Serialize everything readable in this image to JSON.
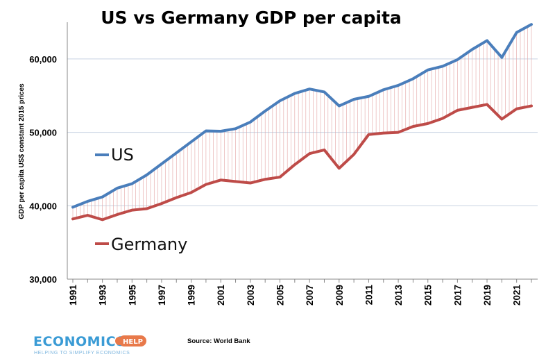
{
  "chart_data": {
    "type": "line",
    "title": "US vs Germany GDP per capita",
    "ylabel": "GDP per capita US$ constant 2015 prices",
    "xlabel": "",
    "ylim": [
      30000,
      65000
    ],
    "yticks": [
      30000,
      40000,
      50000,
      60000
    ],
    "ytick_labels": [
      "30,000",
      "40,000",
      "50,000",
      "60,000"
    ],
    "xlim": [
      1991,
      2022
    ],
    "xtick_labels": [
      "1991",
      "1993",
      "1995",
      "1997",
      "1999",
      "2001",
      "2003",
      "2005",
      "2007",
      "2009",
      "2011",
      "2013",
      "2015",
      "2017",
      "2019",
      "2021"
    ],
    "x": [
      1991,
      1992,
      1993,
      1994,
      1995,
      1996,
      1997,
      1998,
      1999,
      2000,
      2001,
      2002,
      2003,
      2004,
      2005,
      2006,
      2007,
      2008,
      2009,
      2010,
      2011,
      2012,
      2013,
      2014,
      2015,
      2016,
      2017,
      2018,
      2019,
      2020,
      2021,
      2022
    ],
    "series": [
      {
        "name": "US",
        "color": "#4a7ebb",
        "values": [
          39800,
          40600,
          41200,
          42400,
          43000,
          44200,
          45700,
          47200,
          48700,
          50200,
          50150,
          50500,
          51400,
          52900,
          54300,
          55300,
          55900,
          55500,
          53600,
          54500,
          54900,
          55800,
          56400,
          57300,
          58500,
          59000,
          59900,
          61300,
          62500,
          60200,
          63600,
          64700
        ]
      },
      {
        "name": "Germany",
        "color": "#be4b48",
        "values": [
          38200,
          38700,
          38100,
          38800,
          39400,
          39600,
          40300,
          41100,
          41800,
          42900,
          43500,
          43300,
          43100,
          43600,
          43900,
          45600,
          47100,
          47600,
          45100,
          47000,
          49700,
          49900,
          50000,
          50800,
          51200,
          51900,
          53000,
          53400,
          53800,
          51800,
          53200,
          53600
        ]
      }
    ],
    "legend": [
      "US",
      "Germany"
    ],
    "legend_placement": "inside-left",
    "grid": true,
    "gap_shading": "vertical drop lines between series"
  },
  "source": "Source: World Bank",
  "logo": {
    "main_text": "ECONOMICS",
    "badge_text": "HELP",
    "tagline": "HELPING TO SIMPLIFY ECONOMICS"
  }
}
